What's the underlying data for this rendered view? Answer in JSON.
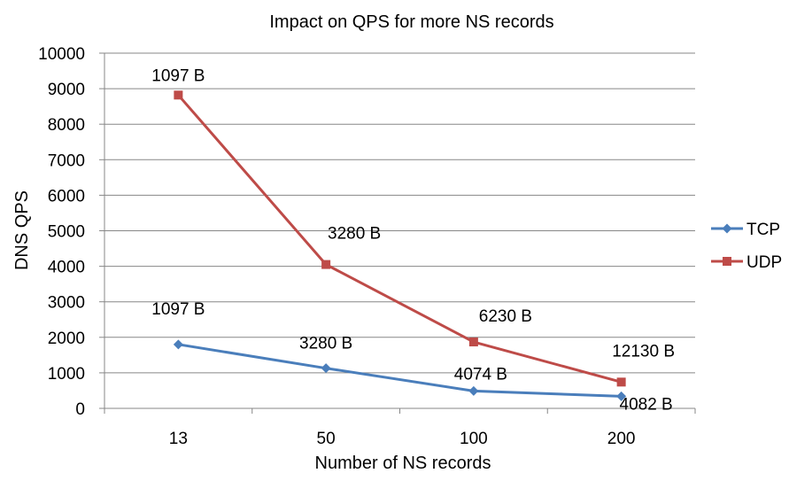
{
  "chart_data": {
    "type": "line",
    "title": "Impact on QPS for more NS records",
    "xlabel": "Number of NS records",
    "ylabel": "DNS QPS",
    "categories": [
      "13",
      "50",
      "100",
      "200"
    ],
    "ylim": [
      0,
      10000
    ],
    "yticks": [
      "0",
      "1000",
      "2000",
      "3000",
      "4000",
      "5000",
      "6000",
      "7000",
      "8000",
      "9000",
      "10000"
    ],
    "grid": true,
    "legend_position": "right",
    "series": [
      {
        "name": "TCP",
        "color": "#4A7EBB",
        "marker": "diamond",
        "values": [
          1800,
          1130,
          490,
          340
        ],
        "labels": [
          "1097 B",
          "3280 B",
          "4074 B",
          "4082 B"
        ]
      },
      {
        "name": "UDP",
        "color": "#BE4B48",
        "marker": "square",
        "values": [
          8820,
          4050,
          1870,
          740
        ],
        "labels": [
          "1097 B",
          "3280 B",
          "6230 B",
          "12130 B"
        ]
      }
    ]
  }
}
